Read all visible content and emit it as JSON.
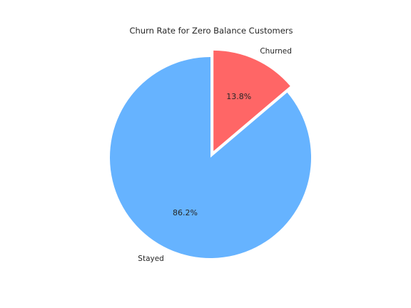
{
  "chart_data": {
    "type": "pie",
    "title": "Churn Rate for Zero Balance Customers",
    "slices": [
      {
        "label": "Stayed",
        "value": 86.2,
        "pct_label": "86.2%",
        "color": "#66b3ff",
        "exploded": false
      },
      {
        "label": "Churned",
        "value": 13.8,
        "pct_label": "13.8%",
        "color": "#ff6666",
        "exploded": true
      }
    ],
    "start_angle": 90,
    "direction": "counterclockwise",
    "legend": "none"
  }
}
